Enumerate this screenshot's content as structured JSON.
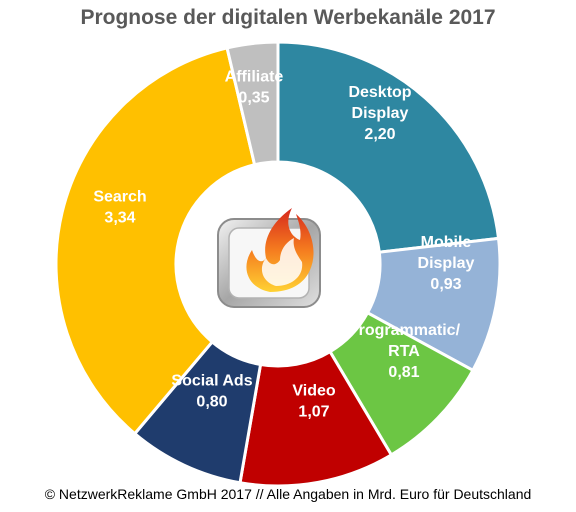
{
  "chart_data": {
    "type": "pie",
    "title": "Prognose der digitalen Werbekanäle 2017",
    "unit_note": "© NetzwerkReklame GmbH 2017 // Alle Angaben in Mrd. Euro für Deutschland",
    "slices": [
      {
        "label_lines": [
          "Desktop",
          "Display"
        ],
        "value": 2.2,
        "value_text": "2,20",
        "color": "#2e87a1"
      },
      {
        "label_lines": [
          "Mobile",
          "Display"
        ],
        "value": 0.93,
        "value_text": "0,93",
        "color": "#95b3d7"
      },
      {
        "label_lines": [
          "Programmatic/",
          "RTA"
        ],
        "value": 0.81,
        "value_text": "0,81",
        "color": "#6cc644"
      },
      {
        "label_lines": [
          "Video"
        ],
        "value": 1.07,
        "value_text": "1,07",
        "color": "#c00000"
      },
      {
        "label_lines": [
          "Social Ads"
        ],
        "value": 0.8,
        "value_text": "0,80",
        "color": "#1f3c6d"
      },
      {
        "label_lines": [
          "Search"
        ],
        "value": 3.34,
        "value_text": "3,34",
        "color": "#ffc000"
      },
      {
        "label_lines": [
          "Affiliate"
        ],
        "value": 0.35,
        "value_text": "0,35",
        "color": "#bfbfbf"
      }
    ]
  },
  "logo": {
    "name": "netzwerkreklame-flame-logo"
  }
}
